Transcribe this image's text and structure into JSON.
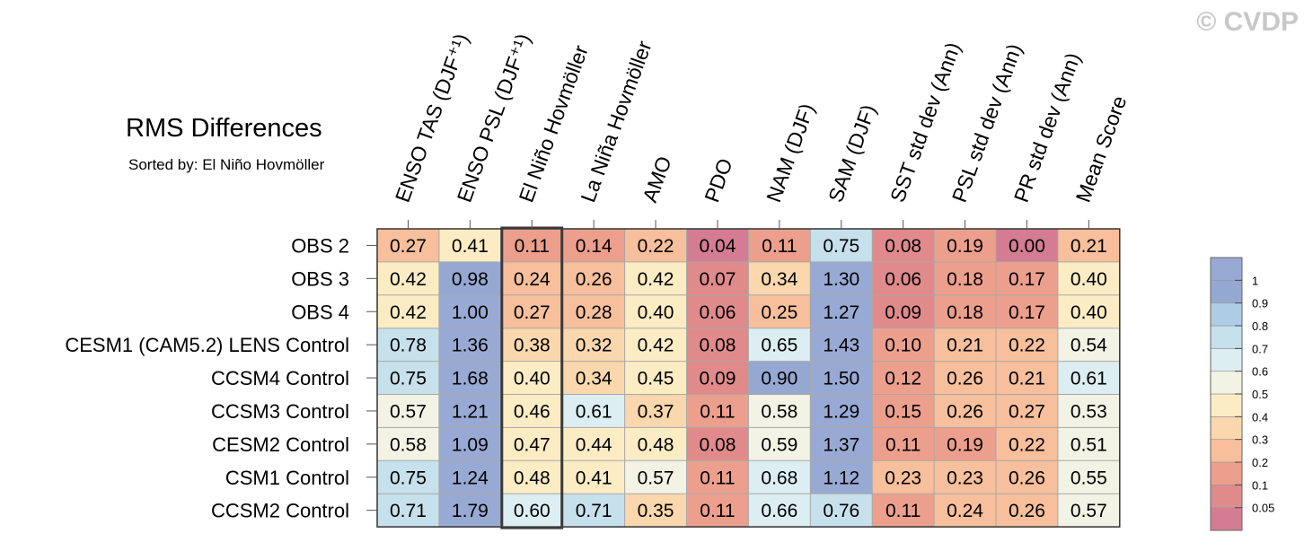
{
  "watermark": "© CVDP",
  "chart_data": {
    "type": "heatmap",
    "title": "RMS Differences",
    "subtitle": "Sorted by: El Niño Hovmöller",
    "columns": [
      "ENSO TAS (DJF⁺¹)",
      "ENSO PSL (DJF⁺¹)",
      "El Niño Hovmöller",
      "La Niña Hovmöller",
      "AMO",
      "PDO",
      "NAM (DJF)",
      "SAM (DJF)",
      "SST std dev (Ann)",
      "PSL std dev (Ann)",
      "PR std dev (Ann)",
      "Mean Score"
    ],
    "rows": [
      "OBS 2",
      "OBS 3",
      "OBS 4",
      "CESM1 (CAM5.2) LENS Control",
      "CCSM4 Control",
      "CCSM3 Control",
      "CESM2 Control",
      "CSM1 Control",
      "CCSM2 Control"
    ],
    "values": [
      [
        0.27,
        0.41,
        0.11,
        0.14,
        0.22,
        0.04,
        0.11,
        0.75,
        0.08,
        0.19,
        0.0,
        0.21
      ],
      [
        0.42,
        0.98,
        0.24,
        0.26,
        0.42,
        0.07,
        0.34,
        1.3,
        0.06,
        0.18,
        0.17,
        0.4
      ],
      [
        0.42,
        1.0,
        0.27,
        0.28,
        0.4,
        0.06,
        0.25,
        1.27,
        0.09,
        0.18,
        0.17,
        0.4
      ],
      [
        0.78,
        1.36,
        0.38,
        0.32,
        0.42,
        0.08,
        0.65,
        1.43,
        0.1,
        0.21,
        0.22,
        0.54
      ],
      [
        0.75,
        1.68,
        0.4,
        0.34,
        0.45,
        0.09,
        0.9,
        1.5,
        0.12,
        0.26,
        0.21,
        0.61
      ],
      [
        0.57,
        1.21,
        0.46,
        0.61,
        0.37,
        0.11,
        0.58,
        1.29,
        0.15,
        0.26,
        0.27,
        0.53
      ],
      [
        0.58,
        1.09,
        0.47,
        0.44,
        0.48,
        0.08,
        0.59,
        1.37,
        0.11,
        0.19,
        0.22,
        0.51
      ],
      [
        0.75,
        1.24,
        0.48,
        0.41,
        0.57,
        0.11,
        0.68,
        1.12,
        0.23,
        0.23,
        0.26,
        0.55
      ],
      [
        0.71,
        1.79,
        0.6,
        0.71,
        0.35,
        0.11,
        0.66,
        0.76,
        0.11,
        0.24,
        0.26,
        0.57
      ]
    ],
    "highlighted_column": "El Niño Hovmöller",
    "colorbar": {
      "levels": [
        0.05,
        0.1,
        0.2,
        0.3,
        0.4,
        0.5,
        0.6,
        0.7,
        0.8,
        0.9,
        1
      ],
      "tick_labels": [
        "0.05",
        "0.1",
        "0.2",
        "0.3",
        "0.4",
        "0.5",
        "0.6",
        "0.7",
        "0.8",
        "0.9",
        "1"
      ],
      "colors": [
        "#d47c92",
        "#e08a8c",
        "#ed9f8d",
        "#f7bf9b",
        "#fad7ac",
        "#fcecc4",
        "#f2f2e5",
        "#dceef2",
        "#c6e0ec",
        "#aecde5",
        "#95a8d2",
        "#98aad3"
      ]
    }
  }
}
